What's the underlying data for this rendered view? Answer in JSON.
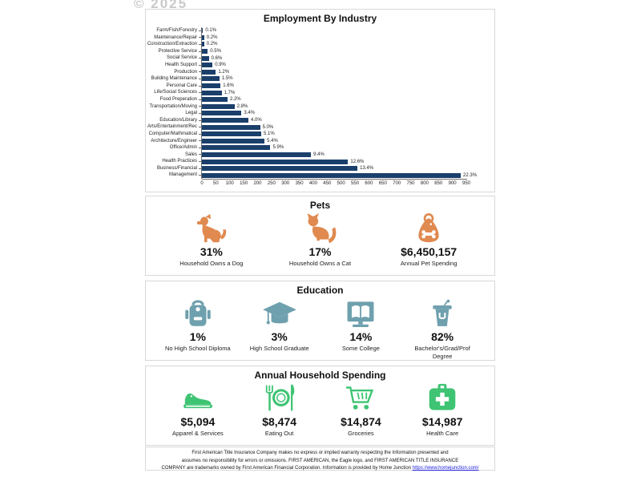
{
  "watermark": "© 2025",
  "colors": {
    "bar_navy": "#1B3F6B",
    "pets_orange": "#E08A50",
    "education_teal": "#6FA0AE",
    "spending_green": "#3EC473",
    "link_blue": "#1a1adb"
  },
  "chart_data": {
    "type": "bar",
    "orientation": "horizontal",
    "title": "Employment By Industry",
    "categories": [
      "Farm/Fish/Forestry",
      "Maintenance/Repair",
      "Construction/Extraction",
      "Protective Service",
      "Social Service",
      "Health Support",
      "Production",
      "Building Maintenance",
      "Personal Care",
      "Life/Social Sciences",
      "Food Preperation",
      "Transportation/Moving",
      "Legal",
      "Education/Library",
      "Arts/Entertainment/Rec",
      "Computer/Mathmatical",
      "Architecture/Engineer",
      "Office/Admin",
      "Sales",
      "Health Practices",
      "Business/Financial",
      "Management"
    ],
    "values": [
      4,
      8,
      8,
      21,
      25,
      38,
      50,
      63,
      67,
      71,
      92,
      117,
      142,
      167,
      209,
      213,
      225,
      246,
      392,
      525,
      559,
      930
    ],
    "percent_labels": [
      "0.1%",
      "0.2%",
      "0.2%",
      "0.5%",
      "0.6%",
      "0.9%",
      "1.2%",
      "1.5%",
      "1.6%",
      "1.7%",
      "2.2%",
      "2.8%",
      "3.4%",
      "4.0%",
      "5.0%",
      "5.1%",
      "5.4%",
      "5.9%",
      "9.4%",
      "12.6%",
      "13.4%",
      "22.3%"
    ],
    "xlabel": "",
    "ylabel": "",
    "xlim": [
      0,
      975
    ],
    "x_tick_min": 0,
    "x_tick_max": 950,
    "x_tick_step": 50,
    "grid": false,
    "legend": "none",
    "bar_color": "#1B3F6B"
  },
  "pets": {
    "title": "Pets",
    "items": [
      {
        "icon": "dog-icon",
        "value": "31%",
        "label": "Household Owns a Dog"
      },
      {
        "icon": "cat-icon",
        "value": "17%",
        "label": "Household Owns a Cat"
      },
      {
        "icon": "pet-food-bag-icon",
        "value": "$6,450,157",
        "label": "Annual Pet Spending"
      }
    ]
  },
  "education": {
    "title": "Education",
    "items": [
      {
        "icon": "backpack-icon",
        "value": "1%",
        "label": "No High School Diploma"
      },
      {
        "icon": "graduation-cap-icon",
        "value": "3%",
        "label": "High School Graduate"
      },
      {
        "icon": "computer-book-icon",
        "value": "14%",
        "label": "Some College"
      },
      {
        "icon": "podium-icon",
        "value": "82%",
        "label": "Bachelor's/Grad/Prof Degree"
      }
    ]
  },
  "spending": {
    "title": "Annual Household Spending",
    "items": [
      {
        "icon": "shoe-icon",
        "value": "$5,094",
        "label": "Apparel & Services"
      },
      {
        "icon": "plate-cutlery-icon",
        "value": "$8,474",
        "label": "Eating Out"
      },
      {
        "icon": "shopping-cart-icon",
        "value": "$14,874",
        "label": "Groceries"
      },
      {
        "icon": "first-aid-kit-icon",
        "value": "$14,987",
        "label": "Health Care"
      }
    ]
  },
  "footer": {
    "line1": "First American Title Insurance Company makes no express or implied warranty respecting the Information presented and",
    "line2": "assumes no responsibility for errors or omissions. FIRST AMERICAN, the Eagle logo, and FIRST AMERICAN TITLE INSURANCE",
    "line3": "COMPANY are trademarks owned by First American Financial Corporation. Information is provided by Home Junction",
    "link": "https://www.homejunction.com/"
  }
}
